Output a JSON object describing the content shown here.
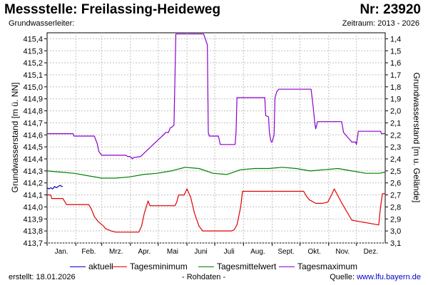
{
  "header": {
    "title": "Messstelle: Freilassing-Heideweg",
    "number": "Nr: 23920",
    "aquifer_label": "Grundwasserleiter:",
    "period": "Zeitraum: 2013 - 2026"
  },
  "footer": {
    "created": "erstellt:  18.01.2026",
    "raw_data": "- Rohdaten -",
    "source_label": "Quelle:",
    "source_link": "www.lfu.bayern.de"
  },
  "colors": {
    "aktuell": "#0000cc",
    "min": "#e00000",
    "mean": "#008000",
    "max": "#8b00cc",
    "grid": "#c0c0c0",
    "frame": "#000000"
  },
  "chart_data": {
    "type": "line",
    "ylabel_left": "Grundwasserstand [m ü. NN]",
    "ylabel_right": "Grundwasserstand [m u. Gelände]",
    "ylim": [
      413.7,
      415.45
    ],
    "y_ticks": [
      "413,7",
      "413,8",
      "413,9",
      "414,0",
      "414,1",
      "414,2",
      "414,3",
      "414,4",
      "414,5",
      "414,6",
      "414,7",
      "414,8",
      "414,9",
      "415,0",
      "415,1",
      "415,2",
      "415,3",
      "415,4"
    ],
    "y2_ticks": [
      "3,1",
      "3,0",
      "2,9",
      "2,8",
      "2,7",
      "2,6",
      "2,5",
      "2,4",
      "2,3",
      "2,2",
      "2,1",
      "2,0",
      "1,9",
      "1,8",
      "1,7",
      "1,6",
      "1,5",
      "1,4"
    ],
    "xlim": [
      1,
      366
    ],
    "categories": [
      "Jan.",
      "Feb.",
      "Mrz.",
      "Apr.",
      "Mai",
      "Juni",
      "Juli",
      "Aug.",
      "Sept.",
      "Okt.",
      "Nov.",
      "Dez."
    ],
    "grid": true,
    "legend_position": "bottom",
    "series": [
      {
        "name": "aktuell",
        "color_key": "aktuell",
        "x": [
          1,
          3,
          5,
          7,
          9,
          11,
          13,
          15,
          17,
          18
        ],
        "y": [
          414.16,
          414.15,
          414.16,
          414.15,
          414.17,
          414.16,
          414.17,
          414.18,
          414.17,
          414.17
        ]
      },
      {
        "name": "Tagesminimum",
        "color_key": "min",
        "x": [
          1,
          5,
          6,
          18,
          22,
          46,
          49,
          52,
          56,
          62,
          64,
          70,
          75,
          100,
          103,
          106,
          110,
          112,
          139,
          141,
          143,
          149,
          152,
          156,
          160,
          165,
          169,
          200,
          203,
          206,
          210,
          212,
          215,
          278,
          281,
          284,
          291,
          295,
          298,
          304,
          308,
          311,
          320,
          330,
          359,
          361,
          363,
          366
        ],
        "y": [
          414.1,
          414.1,
          414.07,
          414.07,
          414.02,
          414.02,
          413.98,
          413.92,
          413.88,
          413.84,
          413.82,
          413.8,
          413.79,
          413.79,
          413.84,
          413.95,
          414.05,
          414.01,
          414.01,
          414.04,
          414.1,
          414.1,
          414.15,
          414.08,
          413.95,
          413.84,
          413.8,
          413.8,
          413.81,
          413.85,
          414.0,
          414.13,
          414.13,
          414.13,
          414.09,
          414.06,
          414.03,
          414.03,
          414.03,
          414.04,
          414.1,
          414.15,
          414.02,
          413.89,
          413.85,
          414.0,
          414.11,
          414.11
        ]
      },
      {
        "name": "Tagesmittelwert",
        "color_key": "mean",
        "x": [
          1,
          15,
          30,
          45,
          60,
          75,
          90,
          105,
          120,
          135,
          150,
          165,
          180,
          195,
          210,
          225,
          240,
          255,
          270,
          285,
          300,
          315,
          330,
          345,
          360,
          366
        ],
        "y": [
          414.3,
          414.29,
          414.28,
          414.26,
          414.24,
          414.24,
          414.25,
          414.27,
          414.28,
          414.3,
          414.33,
          414.32,
          414.28,
          414.27,
          414.31,
          414.32,
          414.32,
          414.33,
          414.32,
          414.3,
          414.31,
          414.32,
          414.3,
          414.28,
          414.28,
          414.29
        ]
      },
      {
        "name": "Tagesmaximum",
        "color_key": "max",
        "x": [
          1,
          29,
          30,
          52,
          55,
          57,
          60,
          86,
          88,
          90,
          92,
          93,
          94,
          102,
          106,
          128,
          129,
          132,
          134,
          135,
          138,
          140,
          170,
          174,
          175,
          176,
          186,
          188,
          192,
          204,
          205,
          206,
          207,
          236,
          237,
          240,
          241,
          242,
          243,
          244,
          246,
          247,
          249,
          251,
          286,
          288,
          290,
          291,
          293,
          296,
          297,
          319,
          321,
          330,
          332,
          334,
          335,
          337,
          361,
          362,
          366
        ],
        "y": [
          414.61,
          414.61,
          414.59,
          414.59,
          414.53,
          414.46,
          414.43,
          414.43,
          414.42,
          414.42,
          414.41,
          414.4,
          414.41,
          414.42,
          414.45,
          414.61,
          414.62,
          414.62,
          414.66,
          414.66,
          414.68,
          415.44,
          415.44,
          415.35,
          414.62,
          414.59,
          414.59,
          414.52,
          414.52,
          414.52,
          414.62,
          414.91,
          414.91,
          414.91,
          414.76,
          414.75,
          414.62,
          414.57,
          414.54,
          414.54,
          414.6,
          414.91,
          414.96,
          414.98,
          414.98,
          414.85,
          414.7,
          414.65,
          414.71,
          414.71,
          414.71,
          414.71,
          414.62,
          414.54,
          414.54,
          414.54,
          414.52,
          414.63,
          414.63,
          414.61,
          414.61
        ]
      }
    ]
  }
}
